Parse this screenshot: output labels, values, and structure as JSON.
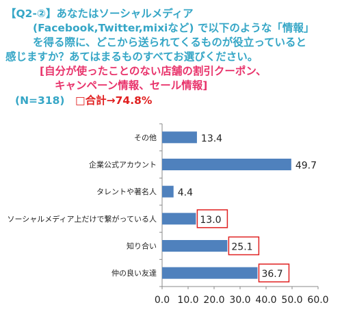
{
  "question": {
    "lines": [
      "【Q2-②】あなたはソーシャルメディア",
      "(Facebook,Twitter,mixiなど) で以下のような「情報」",
      "を得る際に、どこから送られてくるものが役立っていると",
      "感じますか？あてはまるものすべてお選びください。"
    ],
    "highlight_lines": [
      "[自分が使ったことのない店舗の割引クーポン、",
      "キャンペーン情報、セール情報]"
    ],
    "sample": "(N=318)",
    "total": "□合計→74.8%"
  },
  "colors": {
    "bar": "#4f81bd",
    "question_text": "#35a6c6",
    "highlight_text": "#e8336b",
    "total_text": "#e02020",
    "box_outline": "#e02020"
  },
  "chart_data": {
    "type": "bar",
    "orientation": "horizontal",
    "categories": [
      "その他",
      "企業公式アカウント",
      "タレントや著名人",
      "ソーシャルメディア上だけで繋がっている人",
      "知り合い",
      "仲の良い友達"
    ],
    "values": [
      13.4,
      49.7,
      4.4,
      13.0,
      25.1,
      36.7
    ],
    "value_labels": [
      "13.4",
      "49.7",
      "4.4",
      "13.0",
      "25.1",
      "36.7"
    ],
    "boxed_labels": [
      false,
      false,
      false,
      true,
      true,
      true
    ],
    "xlim": [
      0,
      60
    ],
    "xticks": [
      "0.0",
      "10.0",
      "20.0",
      "30.0",
      "40.0",
      "50.0",
      "60.0"
    ],
    "grid": false,
    "legend": "none"
  }
}
